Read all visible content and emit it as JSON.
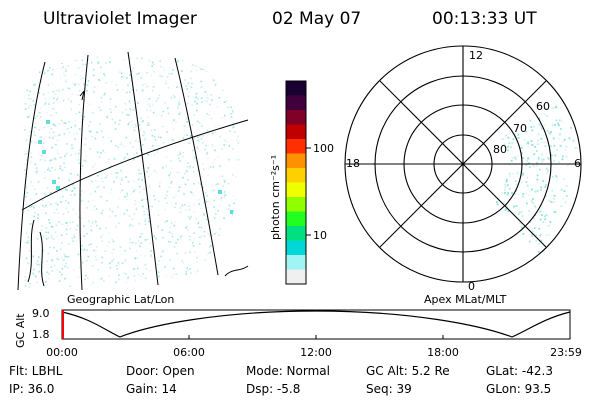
{
  "header": {
    "instrument": "Ultraviolet Imager",
    "date": "02 May 07",
    "time": "00:13:33 UT"
  },
  "geo_panel": {
    "label": "Geographic Lat/Lon"
  },
  "polar_panel": {
    "label": "Apex MLat/MLT",
    "mlt_labels": {
      "top": "12",
      "left": "18",
      "right": "6",
      "bottom": "0"
    },
    "lat_labels": [
      "60",
      "70",
      "80"
    ]
  },
  "colorbar": {
    "unit_label": "photon cm⁻²s⁻¹",
    "ticks": [
      "100",
      "10"
    ],
    "colors": [
      "#1a0030",
      "#40003c",
      "#800028",
      "#c00000",
      "#ff3000",
      "#ff9000",
      "#ffd000",
      "#f0ff00",
      "#90ff00",
      "#20ff20",
      "#00e080",
      "#00d8d8",
      "#a0f4f4",
      "#f0f0f0"
    ]
  },
  "altitude_plot": {
    "ylabel": "GC Alt",
    "yticks": [
      "9.0",
      "1.8"
    ],
    "xticks": [
      "00:00",
      "06:00",
      "12:00",
      "18:00",
      "23:59"
    ],
    "line_color": "#000000",
    "marker_color": "#ff0000"
  },
  "info": {
    "filter": "Flt: LBHL",
    "ip": "IP: 36.0",
    "door": "Door: Open",
    "gain": "Gain: 14",
    "mode": "Mode: Normal",
    "dsp": "Dsp:    -5.8",
    "gc_alt": "GC Alt: 5.2 Re",
    "seq": "Seq: 39",
    "glat": "GLat: -42.3",
    "glon": "GLon:  93.5"
  }
}
